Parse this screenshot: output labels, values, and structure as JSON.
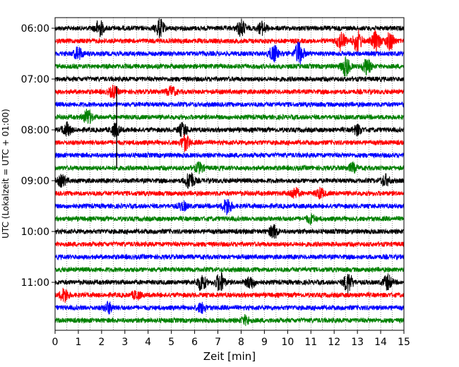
{
  "chart_data": {
    "type": "line",
    "subtype": "seismogram-helicorder",
    "title": "",
    "xlabel": "Zeit  [min]",
    "ylabel": "UTC (Lokalzeit = UTC + 01:00)",
    "xlim": [
      0,
      15
    ],
    "x_ticks": [
      "0",
      "1",
      "2",
      "3",
      "4",
      "5",
      "6",
      "7",
      "8",
      "9",
      "10",
      "11",
      "12",
      "13",
      "14",
      "15"
    ],
    "y_tick_labels": [
      "06:00",
      "07:00",
      "08:00",
      "09:00",
      "10:00",
      "11:00"
    ],
    "grid_vertical_every_min": 0.5,
    "trace_minutes_each": 15,
    "trace_colors": [
      "#000000",
      "#ff0000",
      "#0000ff",
      "#008000"
    ],
    "traces": [
      {
        "start": "06:00",
        "color": "#000000",
        "events": [
          {
            "t": 1.9,
            "amp": 1.2
          },
          {
            "t": 4.5,
            "amp": 1.3
          },
          {
            "t": 8.0,
            "amp": 1.2
          },
          {
            "t": 8.9,
            "amp": 0.9
          }
        ]
      },
      {
        "start": "06:15",
        "color": "#ff0000",
        "events": [
          {
            "t": 12.3,
            "amp": 1.4
          },
          {
            "t": 13.0,
            "amp": 1.6
          },
          {
            "t": 13.8,
            "amp": 1.5
          },
          {
            "t": 14.4,
            "amp": 1.3
          }
        ]
      },
      {
        "start": "06:30",
        "color": "#0000ff",
        "events": [
          {
            "t": 1.0,
            "amp": 0.9
          },
          {
            "t": 9.4,
            "amp": 1.2
          },
          {
            "t": 10.5,
            "amp": 1.8
          }
        ]
      },
      {
        "start": "06:45",
        "color": "#008000",
        "events": [
          {
            "t": 12.5,
            "amp": 1.4
          },
          {
            "t": 13.4,
            "amp": 1.1
          }
        ]
      },
      {
        "start": "07:00",
        "color": "#000000",
        "events": []
      },
      {
        "start": "07:15",
        "color": "#ff0000",
        "events": [
          {
            "t": 2.5,
            "amp": 0.8
          },
          {
            "t": 5.0,
            "amp": 0.7
          }
        ]
      },
      {
        "start": "07:30",
        "color": "#0000ff",
        "events": []
      },
      {
        "start": "07:45",
        "color": "#008000",
        "events": [
          {
            "t": 1.4,
            "amp": 1.1
          }
        ]
      },
      {
        "start": "08:00",
        "color": "#000000",
        "events": [
          {
            "t": 0.5,
            "amp": 1.0
          },
          {
            "t": 2.6,
            "amp": 0.9
          },
          {
            "t": 5.5,
            "amp": 1.0
          },
          {
            "t": 13.0,
            "amp": 0.7
          }
        ]
      },
      {
        "start": "08:15",
        "color": "#ff0000",
        "events": [
          {
            "t": 5.6,
            "amp": 1.2
          }
        ]
      },
      {
        "start": "08:30",
        "color": "#0000ff",
        "events": []
      },
      {
        "start": "08:45",
        "color": "#008000",
        "events": [
          {
            "t": 6.2,
            "amp": 0.7
          },
          {
            "t": 12.8,
            "amp": 0.6
          }
        ]
      },
      {
        "start": "09:00",
        "color": "#000000",
        "events": [
          {
            "t": 5.8,
            "amp": 1.4
          },
          {
            "t": 0.3,
            "amp": 0.8
          },
          {
            "t": 14.2,
            "amp": 0.8
          }
        ]
      },
      {
        "start": "09:15",
        "color": "#ff0000",
        "events": [
          {
            "t": 10.3,
            "amp": 0.8
          },
          {
            "t": 11.4,
            "amp": 0.7
          }
        ]
      },
      {
        "start": "09:30",
        "color": "#0000ff",
        "events": [
          {
            "t": 7.4,
            "amp": 1.2
          },
          {
            "t": 5.5,
            "amp": 0.6
          }
        ]
      },
      {
        "start": "09:45",
        "color": "#008000",
        "events": [
          {
            "t": 11.0,
            "amp": 0.6
          }
        ]
      },
      {
        "start": "10:00",
        "color": "#000000",
        "events": [
          {
            "t": 9.4,
            "amp": 1.0
          }
        ]
      },
      {
        "start": "10:15",
        "color": "#ff0000",
        "events": []
      },
      {
        "start": "10:30",
        "color": "#0000ff",
        "events": []
      },
      {
        "start": "10:45",
        "color": "#008000",
        "events": []
      },
      {
        "start": "11:00",
        "color": "#000000",
        "events": [
          {
            "t": 6.3,
            "amp": 1.2
          },
          {
            "t": 7.1,
            "amp": 1.5
          },
          {
            "t": 8.4,
            "amp": 0.9
          },
          {
            "t": 12.6,
            "amp": 1.5
          },
          {
            "t": 14.3,
            "amp": 1.1
          }
        ]
      },
      {
        "start": "11:15",
        "color": "#ff0000",
        "events": [
          {
            "t": 0.4,
            "amp": 1.0
          },
          {
            "t": 3.5,
            "amp": 0.6
          }
        ]
      },
      {
        "start": "11:30",
        "color": "#0000ff",
        "events": [
          {
            "t": 2.3,
            "amp": 0.8
          },
          {
            "t": 6.3,
            "amp": 0.7
          }
        ]
      },
      {
        "start": "11:45",
        "color": "#008000",
        "events": [
          {
            "t": 8.2,
            "amp": 0.6
          }
        ]
      }
    ],
    "spikes": [
      {
        "trace_from": "07:15",
        "trace_to": "08:45",
        "t": 2.65,
        "color": "#000000"
      }
    ]
  }
}
